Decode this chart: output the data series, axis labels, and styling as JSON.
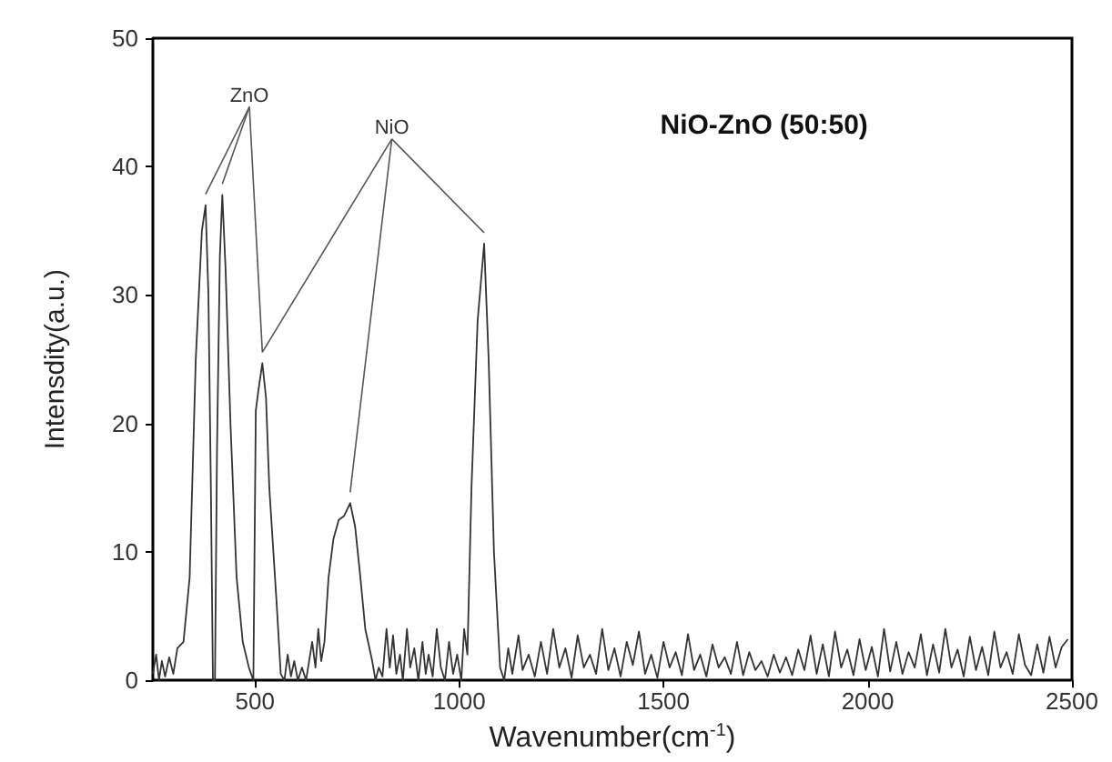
{
  "chart_data": {
    "type": "line",
    "title": "NiO-ZnO (50:50)",
    "xlabel": "Wavenumber(cm$^{-1}$)",
    "ylabel": "Intensdity(a.u.)",
    "xlim": [
      250,
      2500
    ],
    "xticks": [
      500,
      1000,
      1500,
      2000,
      2500
    ],
    "ylim": [
      0,
      50
    ],
    "yticks": [
      0,
      10,
      20,
      30,
      40,
      50
    ],
    "marker": "none",
    "line_style": "solid",
    "annotations": [
      "ZnO",
      "NiO"
    ],
    "series": [
      {
        "color": "#333333",
        "x": [
          250,
          258,
          265,
          272,
          280,
          290,
          300,
          310,
          325,
          340,
          355,
          370,
          379,
          386,
          392,
          397,
          402,
          407,
          414,
          420,
          428,
          440,
          455,
          470,
          485,
          496,
          502,
          508,
          518,
          527,
          535,
          545,
          553,
          563,
          572,
          580,
          588,
          596,
          605,
          615,
          625,
          640,
          648,
          655,
          662,
          670,
          680,
          692,
          705,
          718,
          733,
          745,
          758,
          770,
          787,
          795,
          803,
          812,
          822,
          830,
          838,
          846,
          855,
          862,
          872,
          880,
          890,
          900,
          910,
          918,
          925,
          935,
          945,
          955,
          965,
          975,
          985,
          995,
          1005,
          1012,
          1020,
          1030,
          1045,
          1061,
          1072,
          1085,
          1100,
          1110,
          1120,
          1130,
          1145,
          1155,
          1170,
          1185,
          1200,
          1215,
          1230,
          1245,
          1260,
          1275,
          1290,
          1305,
          1320,
          1335,
          1350,
          1365,
          1380,
          1395,
          1410,
          1425,
          1440,
          1455,
          1470,
          1485,
          1500,
          1515,
          1530,
          1545,
          1560,
          1575,
          1590,
          1605,
          1620,
          1635,
          1650,
          1665,
          1680,
          1695,
          1710,
          1725,
          1740,
          1755,
          1770,
          1785,
          1800,
          1815,
          1830,
          1845,
          1860,
          1875,
          1890,
          1905,
          1920,
          1935,
          1950,
          1965,
          1980,
          1995,
          2010,
          2025,
          2040,
          2055,
          2070,
          2085,
          2100,
          2115,
          2130,
          2145,
          2160,
          2175,
          2190,
          2205,
          2220,
          2235,
          2250,
          2265,
          2280,
          2295,
          2310,
          2325,
          2340,
          2355,
          2370,
          2385,
          2400,
          2415,
          2430,
          2445,
          2460,
          2475,
          2490
        ],
        "values": [
          0.5,
          2,
          0,
          1.5,
          0.3,
          1.8,
          0.5,
          2.5,
          3,
          8,
          25,
          35,
          37,
          30,
          15,
          0,
          0,
          18,
          33,
          37.8,
          32,
          20,
          8,
          3,
          1,
          0,
          21,
          22.5,
          24.7,
          22,
          15,
          10,
          6,
          0.5,
          0,
          2,
          0.3,
          1.5,
          0,
          1,
          0,
          3,
          1,
          4,
          1.5,
          3,
          8,
          11,
          12.5,
          12.8,
          13.8,
          12,
          8,
          4,
          1.5,
          0,
          1,
          0.3,
          4,
          1,
          3.5,
          0.5,
          2,
          0,
          4,
          1,
          2.5,
          0,
          3,
          0.5,
          2,
          0.3,
          4,
          1,
          0,
          3,
          0.5,
          2,
          0,
          4,
          2,
          15,
          28,
          34,
          25,
          10,
          1,
          0,
          2.5,
          0.5,
          3.5,
          0.8,
          2,
          0.3,
          3,
          0.5,
          4,
          1,
          2.5,
          0.2,
          3.5,
          1,
          2,
          0.5,
          4,
          0.8,
          2.5,
          0.3,
          3,
          1.2,
          3.8,
          0.5,
          2,
          0.2,
          3,
          1,
          2.2,
          0.4,
          3.6,
          0.8,
          2,
          0.3,
          2.8,
          1,
          1.8,
          0.5,
          3,
          0.4,
          2.2,
          0.8,
          1.5,
          0.3,
          2,
          0.6,
          1.8,
          0.4,
          2.4,
          0.8,
          3.5,
          0.5,
          2.8,
          0.3,
          3.8,
          1,
          2.4,
          0.4,
          3.2,
          0.8,
          2.6,
          0.3,
          4,
          0.7,
          3,
          0.5,
          2.2,
          1,
          3.6,
          0.4,
          2.8,
          0.6,
          4,
          1,
          2.4,
          0.3,
          3.4,
          0.8,
          2.6,
          0.4,
          3.8,
          1,
          2.2,
          0.5,
          3.6,
          1.2,
          0.4,
          2.8,
          0.6,
          3.4,
          1,
          2.6,
          3.2
        ]
      }
    ]
  }
}
